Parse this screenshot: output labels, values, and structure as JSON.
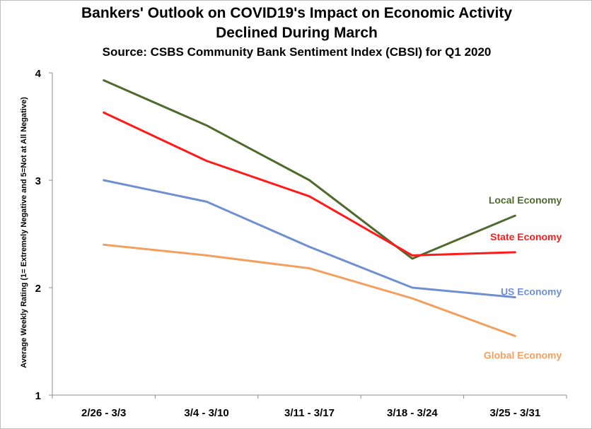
{
  "chart_data": {
    "type": "line",
    "title": "Bankers' Outlook on COVID19's Impact on Economic Activity",
    "title_line2": "Declined During March",
    "subtitle": "Source: CSBS Community Bank Sentiment Index (CBSI) for Q1 2020",
    "xlabel": "",
    "ylabel": "Average Weekly Rating (1= Extremely Negative and 5=Not at All Negative)",
    "categories": [
      "2/26 - 3/3",
      "3/4 - 3/10",
      "3/11 - 3/17",
      "3/18 - 3/24",
      "3/25 - 3/31"
    ],
    "ylim": [
      1,
      4
    ],
    "yticks": [
      "1",
      "2",
      "3",
      "4"
    ],
    "grid": false,
    "legend": "inline labels at line ends",
    "series": [
      {
        "name": "Local Economy",
        "color": "#4e6b2d",
        "values": [
          3.93,
          3.51,
          3.0,
          2.27,
          2.67
        ]
      },
      {
        "name": "State Economy",
        "color": "#ff1a1a",
        "values": [
          3.63,
          3.18,
          2.85,
          2.3,
          2.33
        ]
      },
      {
        "name": "US Economy",
        "color": "#6f8fd0",
        "values": [
          3.0,
          2.8,
          2.38,
          2.0,
          1.91
        ]
      },
      {
        "name": "Global Economy",
        "color": "#f2a060",
        "values": [
          2.4,
          2.3,
          2.18,
          1.9,
          1.55
        ]
      }
    ]
  }
}
